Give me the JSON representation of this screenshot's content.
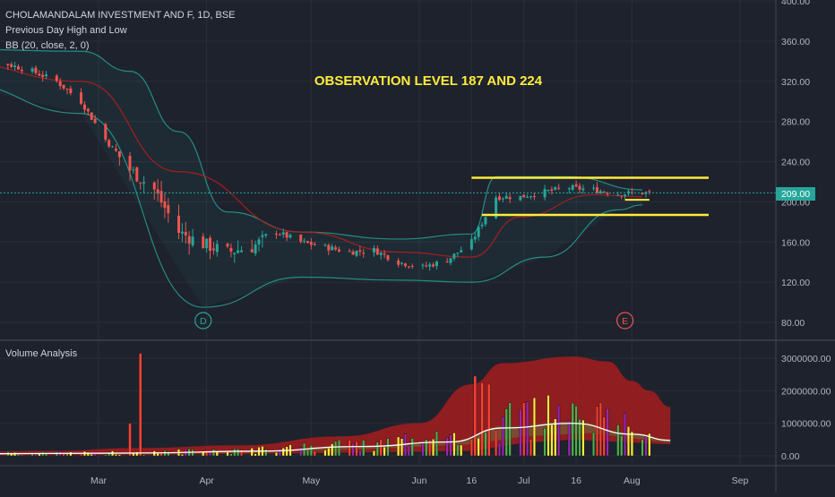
{
  "header": {
    "symbol_line": "CHOLAMANDALAM INVESTMENT AND F, 1D, BSE",
    "indicator_1": "Previous Day High and Low",
    "indicator_2": "BB (20, close, 2, 0)"
  },
  "annotation": "OBSERVATION LEVEL 187 AND 224",
  "volume_panel_title": "Volume Analysis",
  "price_label": "209.00",
  "events": [
    {
      "label": "D",
      "date": "Mar 31",
      "color": "#26a69a"
    },
    {
      "label": "E",
      "date": "Jul 30",
      "color": "#ef5350"
    }
  ],
  "colors": {
    "background": "#1e222d",
    "up": "#26a69a",
    "down": "#ef5350",
    "bb_band": "#26a69a",
    "bb_basis": "#b71c1c",
    "level_lines": "#ffeb3b",
    "price_line": "#26a69a",
    "volume_band": "#b71c1c",
    "volume_ma": "#ffffff"
  },
  "chart_data": [
    {
      "type": "candlestick",
      "panel": "price",
      "y_axis_ticks": [
        "400.00",
        "360.00",
        "320.00",
        "280.00",
        "240.00",
        "200.00",
        "160.00",
        "120.00",
        "80.00"
      ],
      "ylim": [
        67,
        400
      ],
      "x_axis_ticks": [
        "Mar",
        "Apr",
        "May",
        "Jun",
        "16",
        "Jul",
        "16",
        "Aug",
        "Sep"
      ],
      "series": [
        {
          "name": "Price",
          "close_path": [
            [
              "Jan 21",
              342
            ],
            [
              "Jan 28",
              338
            ],
            [
              "Feb 04",
              337
            ],
            [
              "Feb 11",
              330
            ],
            [
              "Feb 18",
              320
            ],
            [
              "Feb 25",
              300
            ],
            [
              "Mar 03",
              262
            ],
            [
              "Mar 10",
              232
            ],
            [
              "Mar 17",
              212
            ],
            [
              "Mar 24",
              170
            ],
            [
              "Mar 31",
              158
            ],
            [
              "Apr 07",
              150
            ],
            [
              "Apr 14",
              155
            ],
            [
              "Apr 21",
              170
            ],
            [
              "Apr 28",
              160
            ],
            [
              "May 05",
              155
            ],
            [
              "May 12",
              150
            ],
            [
              "May 19",
              152
            ],
            [
              "May 26",
              140
            ],
            [
              "Jun 02",
              135
            ],
            [
              "Jun 09",
              142
            ],
            [
              "Jun 16",
              160
            ],
            [
              "Jun 23",
              205
            ],
            [
              "Jun 30",
              205
            ],
            [
              "Jul 07",
              210
            ],
            [
              "Jul 14",
              214
            ],
            [
              "Jul 21",
              212
            ],
            [
              "Jul 28",
              208
            ],
            [
              "Aug 04",
              209
            ]
          ]
        },
        {
          "name": "BB",
          "upper": [
            [
              "Jan 21",
              352
            ],
            [
              "Feb 25",
              350
            ],
            [
              "Mar 10",
              330
            ],
            [
              "Mar 24",
              270
            ],
            [
              "Apr 07",
              190
            ],
            [
              "Apr 28",
              170
            ],
            [
              "May 26",
              163
            ],
            [
              "Jun 16",
              168
            ],
            [
              "Jun 23",
              225
            ],
            [
              "Jul 14",
              225
            ],
            [
              "Aug 04",
              212
            ]
          ],
          "basis": [
            [
              "Jan 21",
              338
            ],
            [
              "Feb 25",
              320
            ],
            [
              "Mar 24",
              230
            ],
            [
              "Apr 28",
              170
            ],
            [
              "May 26",
              150
            ],
            [
              "Jun 16",
              145
            ],
            [
              "Jun 30",
              185
            ],
            [
              "Jul 21",
              207
            ],
            [
              "Aug 04",
              205
            ]
          ],
          "lower": [
            [
              "Jan 21",
              318
            ],
            [
              "Feb 25",
              288
            ],
            [
              "Mar 31",
              95
            ],
            [
              "Apr 28",
              125
            ],
            [
              "May 26",
              122
            ],
            [
              "Jun 16",
              120
            ],
            [
              "Jul 07",
              145
            ],
            [
              "Jul 28",
              192
            ],
            [
              "Aug 04",
              197
            ]
          ]
        }
      ],
      "horizontal_levels": [
        224,
        187
      ],
      "current_price": 209
    },
    {
      "type": "bar",
      "panel": "volume",
      "y_axis_ticks": [
        "3000000.00",
        "2000000.00",
        "1000000.00",
        "0.00"
      ],
      "ylim": [
        0,
        3300000
      ],
      "spikes": [
        {
          "date": "Mar 10",
          "value": 1000000
        },
        {
          "date": "Mar 13",
          "value": 3150000
        },
        {
          "date": "Jun 17",
          "value": 2450000
        },
        {
          "date": "Jun 19",
          "value": 2250000
        },
        {
          "date": "Jun 21",
          "value": 2200000
        }
      ]
    }
  ]
}
